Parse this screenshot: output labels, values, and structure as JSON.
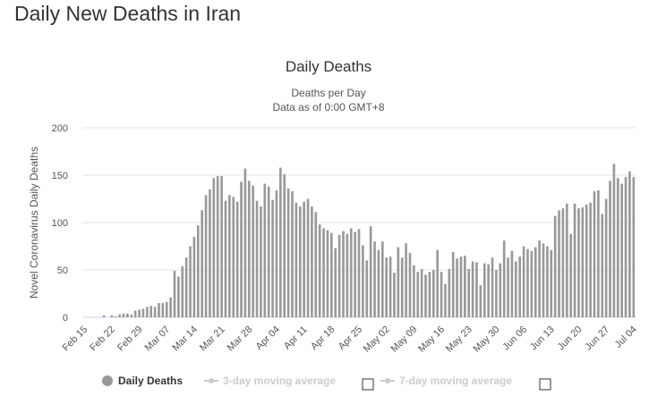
{
  "page": {
    "title": "Daily New Deaths in Iran"
  },
  "chart_data": {
    "type": "bar",
    "title": "Daily Deaths",
    "subtitle_1": "Deaths per Day",
    "subtitle_2": "Data as of 0:00 GMT+8",
    "ylabel": "Novel Coronavirus Daily Deaths",
    "xlabel": "",
    "ylim": [
      0,
      200
    ],
    "yticks": [
      0,
      50,
      100,
      150,
      200
    ],
    "grid": true,
    "bar_color": "#999999",
    "x_start": "2020-02-15",
    "x_tick_labels": [
      "Feb 15",
      "Feb 22",
      "Feb 29",
      "Mar 07",
      "Mar 14",
      "Mar 21",
      "Mar 28",
      "Apr 04",
      "Apr 11",
      "Apr 18",
      "Apr 25",
      "May 02",
      "May 09",
      "May 16",
      "May 23",
      "May 30",
      "Jun 06",
      "Jun 13",
      "Jun 20",
      "Jun 27",
      "Jul 04"
    ],
    "values": [
      0,
      0,
      0,
      0,
      0,
      2,
      0,
      2,
      1,
      3,
      4,
      4,
      3,
      7,
      8,
      9,
      11,
      12,
      11,
      15,
      15,
      16,
      21,
      49,
      43,
      54,
      63,
      75,
      85,
      97,
      113,
      129,
      135,
      147,
      149,
      149,
      123,
      129,
      127,
      122,
      143,
      157,
      144,
      139,
      123,
      117,
      141,
      138,
      124,
      134,
      158,
      151,
      136,
      133,
      121,
      117,
      122,
      125,
      117,
      111,
      98,
      94,
      92,
      89,
      73,
      87,
      91,
      88,
      94,
      90,
      93,
      76,
      60,
      96,
      80,
      71,
      80,
      63,
      64,
      47,
      74,
      63,
      78,
      68,
      55,
      48,
      51,
      45,
      48,
      50,
      71,
      48,
      35,
      51,
      69,
      62,
      64,
      65,
      51,
      59,
      58,
      34,
      57,
      56,
      63,
      50,
      57,
      81,
      63,
      70,
      59,
      64,
      75,
      72,
      70,
      74,
      81,
      78,
      75,
      71,
      107,
      113,
      115,
      120,
      88,
      120,
      115,
      116,
      119,
      121,
      133,
      134,
      109,
      125,
      144,
      162,
      147,
      141,
      148,
      154,
      148
    ],
    "legend": {
      "placement": "bottom",
      "items": [
        {
          "label": "Daily Deaths",
          "active": true,
          "color": "#999999"
        },
        {
          "label": "3-day moving average",
          "active": false,
          "color": "#cccccc"
        },
        {
          "label": "7-day moving average",
          "active": false,
          "color": "#cccccc"
        }
      ]
    }
  }
}
